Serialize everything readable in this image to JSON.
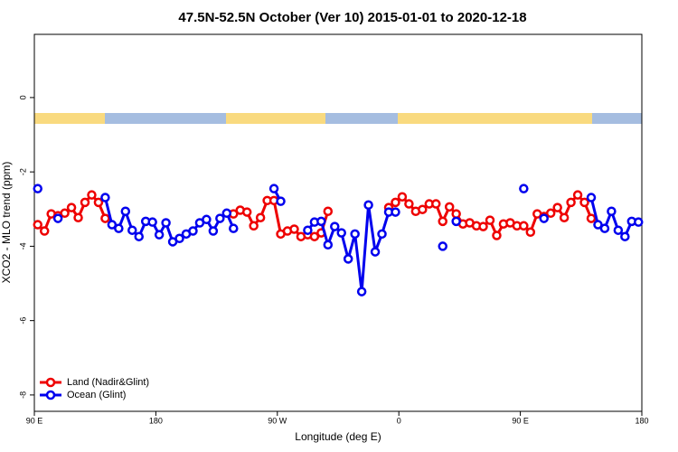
{
  "chart_data": {
    "type": "line",
    "title": "47.5N-52.5N October (Ver 10)   2015-01-01 to 2020-12-18",
    "xlabel": "Longitude (deg E)",
    "ylabel": "XCO2 - MLO trend (ppm)",
    "xlim": [
      90,
      540
    ],
    "ylim": [
      -8.44,
      1.7
    ],
    "xticks": [
      {
        "value": 90,
        "label": "90 E"
      },
      180,
      {
        "value": 270,
        "label": "90 W"
      },
      {
        "value": 360,
        "label": "0"
      },
      {
        "value": 450,
        "label": "90 E"
      },
      {
        "value": 540,
        "label": "180"
      }
    ],
    "yticks": [
      0,
      -2,
      -4,
      -6,
      -8
    ],
    "legend": "lower left",
    "x": [
      92.5,
      97.5,
      102.5,
      107.5,
      112.5,
      117.5,
      122.5,
      127.5,
      132.5,
      137.5,
      142.5,
      147.5,
      152.5,
      157.5,
      162.5,
      167.5,
      172.5,
      177.5,
      182.5,
      187.5,
      192.5,
      197.5,
      202.5,
      207.5,
      212.5,
      217.5,
      222.5,
      227.5,
      232.5,
      237.5,
      242.5,
      247.5,
      252.5,
      257.5,
      262.5,
      267.5,
      272.5,
      277.5,
      282.5,
      287.5,
      292.5,
      297.5,
      302.5,
      307.5,
      312.5,
      317.5,
      322.5,
      327.5,
      332.5,
      337.5,
      342.5,
      347.5,
      352.5,
      357.5,
      362.5,
      367.5,
      372.5,
      377.5,
      382.5,
      387.5,
      392.5,
      397.5,
      402.5,
      407.5,
      412.5,
      417.5,
      422.5,
      427.5,
      432.5,
      437.5,
      442.5,
      447.5,
      452.5,
      457.5,
      462.5,
      467.5,
      472.5,
      477.5,
      482.5,
      487.5,
      492.5,
      497.5,
      502.5,
      507.5,
      512.5,
      517.5,
      522.5,
      527.5,
      532.5,
      537.5
    ],
    "series": [
      {
        "name": "Land (Nadir&Glint)",
        "color": "#ee0000",
        "values": [
          -3.42,
          -3.59,
          -3.13,
          -3.18,
          -3.11,
          -2.96,
          -3.23,
          -2.82,
          -2.62,
          -2.82,
          -3.25,
          null,
          null,
          null,
          null,
          null,
          null,
          null,
          null,
          null,
          null,
          null,
          null,
          null,
          null,
          null,
          null,
          null,
          null,
          -3.13,
          -3.03,
          -3.08,
          -3.45,
          -3.23,
          -2.77,
          -2.77,
          -3.67,
          -3.59,
          -3.54,
          -3.74,
          -3.69,
          -3.74,
          -3.64,
          -3.06,
          null,
          null,
          null,
          null,
          null,
          null,
          null,
          null,
          -2.96,
          -2.82,
          -2.67,
          -2.86,
          -3.06,
          -3.01,
          -2.86,
          -2.86,
          -3.33,
          -2.94,
          -3.13,
          -3.4,
          -3.37,
          -3.45,
          -3.47,
          -3.3,
          -3.71,
          -3.4,
          -3.37,
          -3.45,
          -3.45,
          -3.62,
          -3.13,
          -3.2,
          -3.11,
          -2.96,
          -3.23,
          -2.82,
          -2.62,
          -2.82,
          -3.25,
          null,
          null,
          null,
          null,
          null,
          null,
          null
        ]
      },
      {
        "name": "Ocean (Glint)",
        "color": "#0000ee",
        "values": [
          -2.45,
          null,
          null,
          -3.25,
          null,
          null,
          null,
          null,
          null,
          null,
          -2.69,
          -3.42,
          -3.52,
          -3.06,
          -3.57,
          -3.74,
          -3.33,
          -3.35,
          -3.69,
          -3.37,
          -3.88,
          -3.79,
          -3.67,
          -3.59,
          -3.37,
          -3.28,
          -3.59,
          -3.25,
          -3.11,
          -3.52,
          null,
          null,
          null,
          null,
          null,
          -2.45,
          -2.79,
          null,
          null,
          null,
          -3.57,
          -3.35,
          -3.33,
          -3.96,
          -3.47,
          -3.64,
          -4.34,
          -3.67,
          -5.22,
          -2.89,
          -4.15,
          -3.67,
          -3.08,
          -3.08,
          null,
          null,
          null,
          null,
          null,
          null,
          -4.0,
          null,
          -3.33,
          null,
          null,
          null,
          null,
          null,
          null,
          null,
          null,
          null,
          -2.45,
          null,
          null,
          -3.25,
          null,
          null,
          null,
          null,
          null,
          null,
          -2.69,
          -3.42,
          -3.52,
          -3.06,
          -3.57,
          -3.74,
          -3.33,
          -3.35
        ]
      }
    ]
  }
}
